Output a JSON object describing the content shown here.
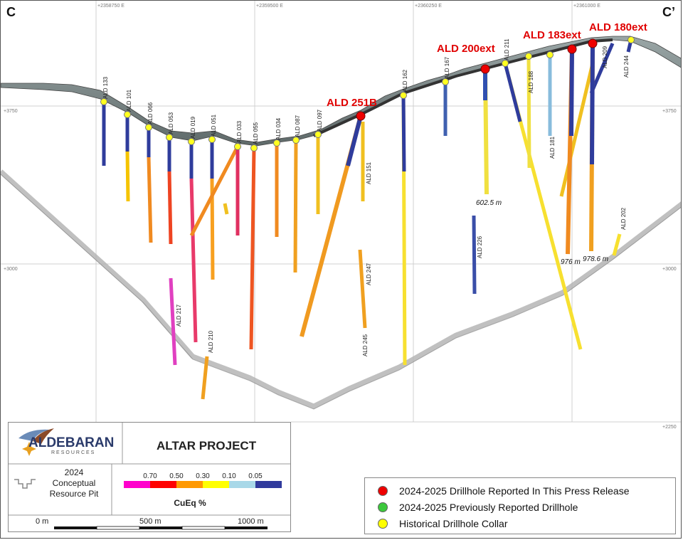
{
  "section": {
    "left_label": "C",
    "right_label": "C’",
    "eastings": [
      "+2358750 E",
      "+2359500 E",
      "+2360250 E",
      "+2361000 E"
    ],
    "elevations_left": [
      "+3750",
      "+3000"
    ],
    "elevations_right": [
      "+3750",
      "+3000",
      "+2250"
    ]
  },
  "new_holes": [
    {
      "id": "ALD 251B"
    },
    {
      "id": "ALD 200ext"
    },
    {
      "id": "ALD 183ext"
    },
    {
      "id": "ALD 180ext"
    }
  ],
  "historical_holes": [
    "ALD 133",
    "ALD 101",
    "ALD 066",
    "ALD 053",
    "ALD 019",
    "ALD 051",
    "ALD 033",
    "ALD 055",
    "ALD 034",
    "ALD 087",
    "ALD 097",
    "ALD 162",
    "ALD 167",
    "ALD 211",
    "ALD 188",
    "ALD 181",
    "ALD 209",
    "ALD 244",
    "ALD 151",
    "ALD 247",
    "ALD 245",
    "ALD 226",
    "ALD 202",
    "ALD 217",
    "ALD 210"
  ],
  "depth_labels": [
    "602.5 m",
    "976 m",
    "978.6 m"
  ],
  "panel": {
    "logo_name": "ALDEBARAN",
    "logo_sub": "RESOURCES",
    "project": "ALTAR PROJECT",
    "pit_year": "2024",
    "pit_line1": "Conceptual",
    "pit_line2": "Resource Pit",
    "scale_ticks": [
      "0.70",
      "0.50",
      "0.30",
      "0.10",
      "0.05"
    ],
    "scale_colors": [
      "#ff00cc",
      "#ff0000",
      "#ff9900",
      "#ffff00",
      "#a8d8e8",
      "#303a9c"
    ],
    "scale_title": "CuEq %",
    "bar_labels": [
      "0 m",
      "500 m",
      "1000 m"
    ]
  },
  "legend": [
    {
      "label": "2024-2025 Drillhole Reported In This Press Release",
      "color": "#ee0000"
    },
    {
      "label": "2024-2025 Previously Reported Drillhole",
      "color": "#3cc83c"
    },
    {
      "label": "Historical Drillhole Collar",
      "color": "#ffff00"
    }
  ]
}
